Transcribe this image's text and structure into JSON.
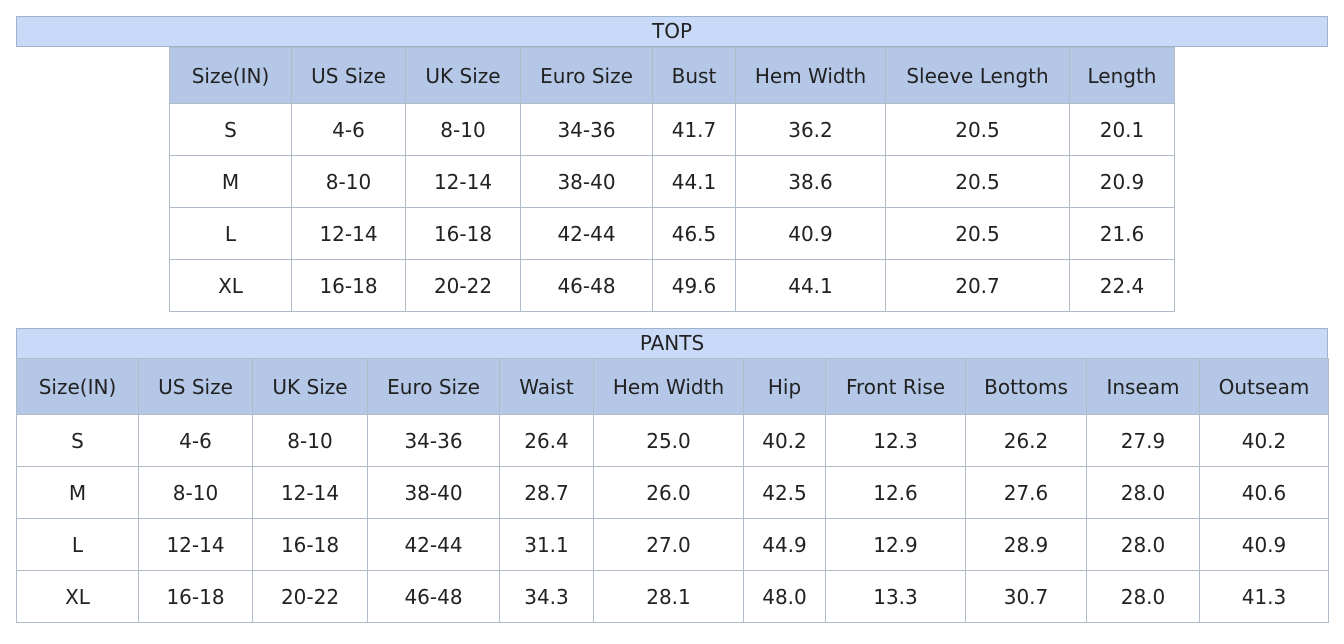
{
  "top": {
    "title": "TOP",
    "headers": [
      "Size(IN)",
      "US Size",
      "UK Size",
      "Euro Size",
      "Bust",
      "Hem Width",
      "Sleeve Length",
      "Length"
    ],
    "rows": [
      [
        "S",
        "4-6",
        "8-10",
        "34-36",
        "41.7",
        "36.2",
        "20.5",
        "20.1"
      ],
      [
        "M",
        "8-10",
        "12-14",
        "38-40",
        "44.1",
        "38.6",
        "20.5",
        "20.9"
      ],
      [
        "L",
        "12-14",
        "16-18",
        "42-44",
        "46.5",
        "40.9",
        "20.5",
        "21.6"
      ],
      [
        "XL",
        "16-18",
        "20-22",
        "46-48",
        "49.6",
        "44.1",
        "20.7",
        "22.4"
      ]
    ]
  },
  "pants": {
    "title": "PANTS",
    "headers": [
      "Size(IN)",
      "US Size",
      "UK Size",
      "Euro Size",
      "Waist",
      "Hem Width",
      "Hip",
      "Front Rise",
      "Bottoms",
      "Inseam",
      "Outseam"
    ],
    "rows": [
      [
        "S",
        "4-6",
        "8-10",
        "34-36",
        "26.4",
        "25.0",
        "40.2",
        "12.3",
        "26.2",
        "27.9",
        "40.2"
      ],
      [
        "M",
        "8-10",
        "12-14",
        "38-40",
        "28.7",
        "26.0",
        "42.5",
        "12.6",
        "27.6",
        "28.0",
        "40.6"
      ],
      [
        "L",
        "12-14",
        "16-18",
        "42-44",
        "31.1",
        "27.0",
        "44.9",
        "12.9",
        "28.9",
        "28.0",
        "40.9"
      ],
      [
        "XL",
        "16-18",
        "20-22",
        "46-48",
        "34.3",
        "28.1",
        "48.0",
        "13.3",
        "30.7",
        "28.0",
        "41.3"
      ]
    ]
  }
}
